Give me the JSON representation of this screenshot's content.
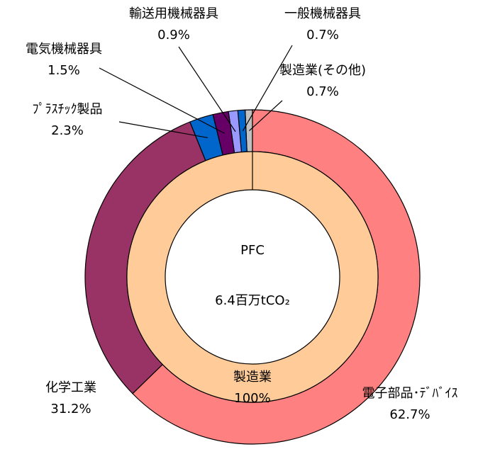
{
  "chart_data": {
    "type": "donut",
    "outer": {
      "categories": [
        "電子部品･ﾃﾞﾊﾞｲｽ",
        "化学工業",
        "ﾌﾟﾗｽﾁｯｸ製品",
        "電気機械器具",
        "輸送用機械器具",
        "一般機械器具",
        "製造業(その他)"
      ],
      "values": [
        62.7,
        31.2,
        2.3,
        1.5,
        0.9,
        0.7,
        0.7
      ],
      "value_labels": [
        "62.7%",
        "31.2%",
        "2.3%",
        "1.5%",
        "0.9%",
        "0.7%",
        "0.7%"
      ],
      "colors": [
        "#FF8080",
        "#993366",
        "#0066CC",
        "#660066",
        "#9999FF",
        "#0066CC",
        "#C0C0C0"
      ]
    },
    "inner": {
      "categories": [
        "製造業"
      ],
      "values": [
        100
      ],
      "value_labels": [
        "100%"
      ],
      "colors": [
        "#FFCC99"
      ]
    },
    "center_title": "PFC",
    "center_total": "6.4百万tCO₂"
  }
}
